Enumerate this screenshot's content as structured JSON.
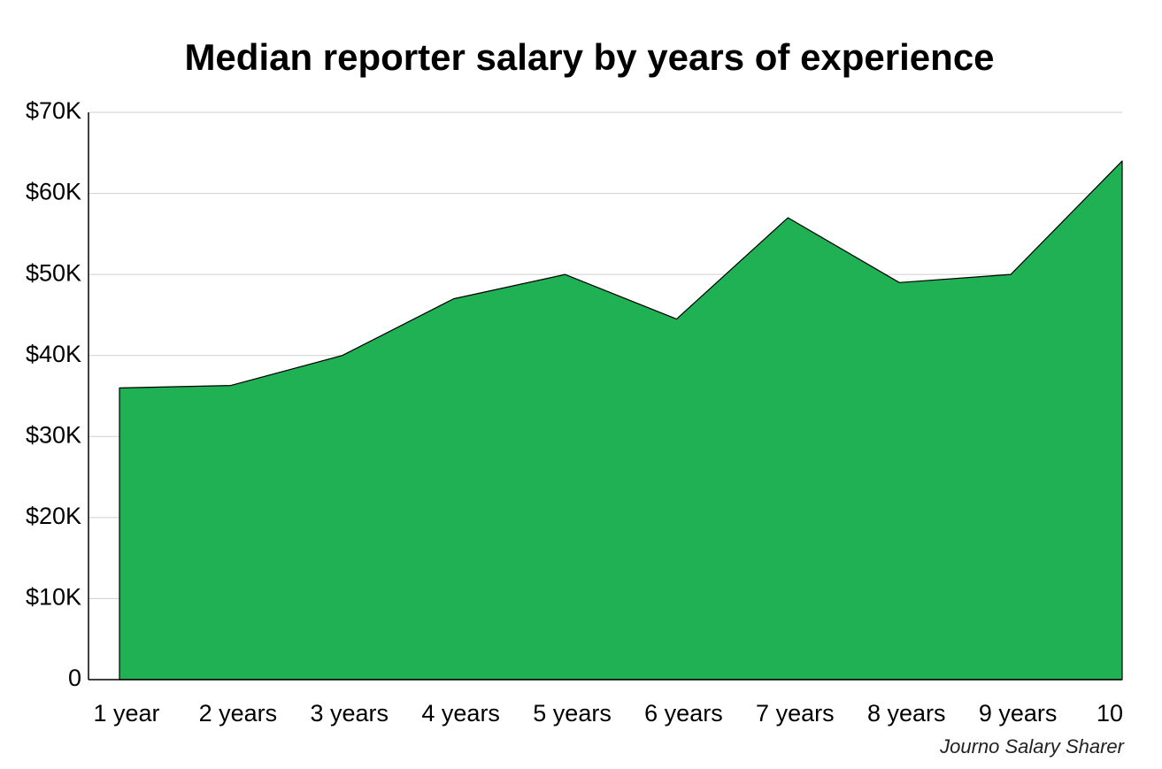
{
  "chart_data": {
    "type": "area",
    "title": "Median reporter salary by years of experience",
    "source": "Journo Salary Sharer",
    "categories": [
      "1 year",
      "2 years",
      "3 years",
      "4 years",
      "5 years",
      "6 years",
      "7 years",
      "8 years",
      "9 years",
      "10"
    ],
    "series": [
      {
        "color": "#20b155",
        "values": [
          36000,
          36300,
          40000,
          47000,
          50000,
          44500,
          57000,
          49000,
          50000,
          64000
        ]
      }
    ],
    "ylim": [
      0,
      70000
    ],
    "yticks": [
      0,
      {
        "value": 10000,
        "label": "$10K"
      },
      {
        "value": 20000,
        "label": "$20K"
      },
      {
        "value": 30000,
        "label": "$30K"
      },
      {
        "value": 40000,
        "label": "$40K"
      },
      {
        "value": 50000,
        "label": "$50K"
      },
      {
        "value": 60000,
        "label": "$60K"
      },
      {
        "value": 70000,
        "label": "$70K"
      }
    ],
    "grid": true
  }
}
